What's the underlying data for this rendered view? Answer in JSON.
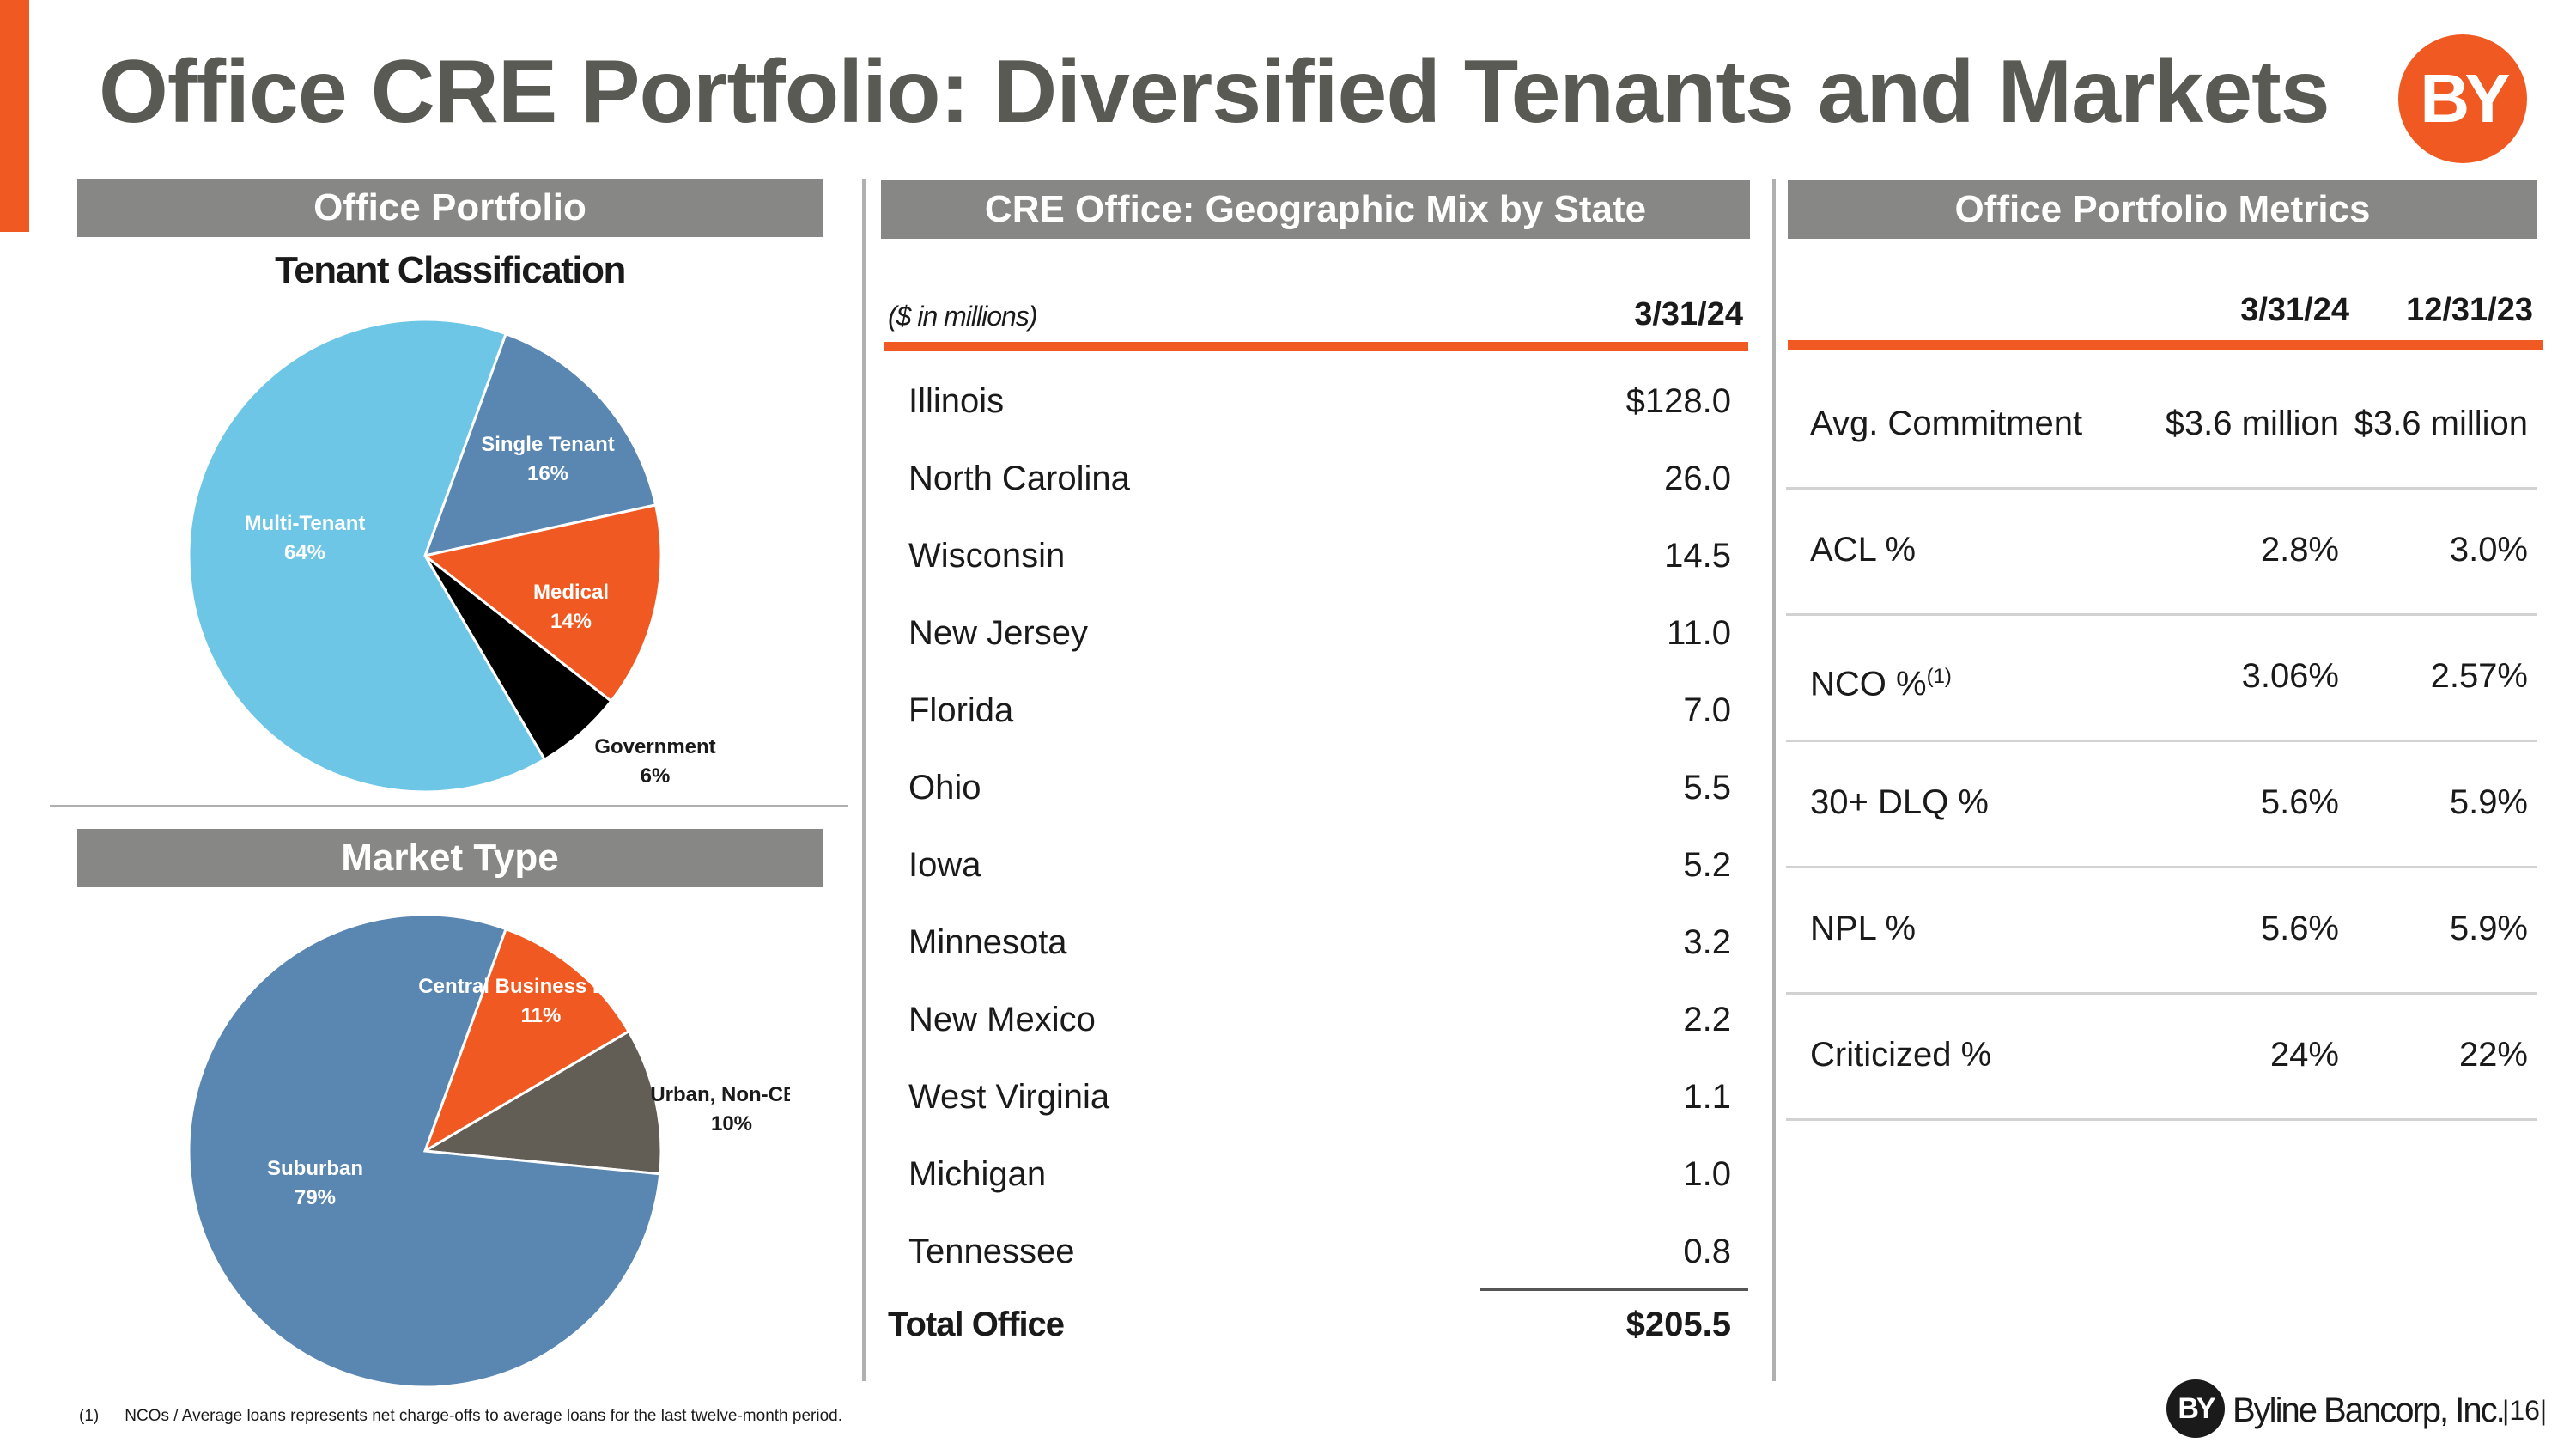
{
  "slide": {
    "title": "Office CRE Portfolio: Diversified Tenants and Markets",
    "logo_text": "BY",
    "page_number": "16",
    "footer_brand": "Byline Bancorp, Inc.",
    "footnote_marker": "(1)",
    "footnote_text": "NCOs / Average loans represents net charge-offs to average loans for the last twelve-month period."
  },
  "office_portfolio": {
    "header": "Office Portfolio",
    "subtitle": "Tenant Classification"
  },
  "market_type": {
    "header": "Market Type"
  },
  "chart_data": [
    {
      "type": "pie",
      "title": "Tenant Classification",
      "slices": [
        {
          "label": "Single Tenant",
          "value": 16,
          "pct_label": "16%",
          "color": "#5a87b2"
        },
        {
          "label": "Medical",
          "value": 14,
          "pct_label": "14%",
          "color": "#f05a22"
        },
        {
          "label": "Government",
          "value": 6,
          "pct_label": "6%",
          "color": "#000000"
        },
        {
          "label": "Multi-Tenant",
          "value": 64,
          "pct_label": "64%",
          "color": "#6ec6e6"
        }
      ]
    },
    {
      "type": "pie",
      "title": "Market Type",
      "slices": [
        {
          "label": "Central Business District",
          "value": 11,
          "pct_label": "11%",
          "color": "#f05a22"
        },
        {
          "label": "Urban, Non-CBD",
          "value": 10,
          "pct_label": "10%",
          "color": "#625e56"
        },
        {
          "label": "Suburban",
          "value": 79,
          "pct_label": "79%",
          "color": "#5a87b2"
        }
      ]
    }
  ],
  "geo": {
    "header": "CRE Office: Geographic Mix by State",
    "unit_note": "($  in millions)",
    "date": "3/31/24",
    "rows": [
      {
        "state": "Illinois",
        "value": "$128.0"
      },
      {
        "state": "North Carolina",
        "value": "26.0"
      },
      {
        "state": "Wisconsin",
        "value": "14.5"
      },
      {
        "state": "New Jersey",
        "value": "11.0"
      },
      {
        "state": "Florida",
        "value": "7.0"
      },
      {
        "state": "Ohio",
        "value": "5.5"
      },
      {
        "state": "Iowa",
        "value": "5.2"
      },
      {
        "state": "Minnesota",
        "value": "3.2"
      },
      {
        "state": "New Mexico",
        "value": "2.2"
      },
      {
        "state": "West Virginia",
        "value": "1.1"
      },
      {
        "state": "Michigan",
        "value": "1.0"
      },
      {
        "state": "Tennessee",
        "value": "0.8"
      }
    ],
    "total_label": "Total Office",
    "total_value": "$205.5"
  },
  "metrics": {
    "header": "Office Portfolio Metrics",
    "col1": "3/31/24",
    "col2": "12/31/23",
    "rows": [
      {
        "label": "Avg. Commitment",
        "sup": "",
        "v1": "$3.6 million",
        "v2": "$3.6 million"
      },
      {
        "label": "ACL %",
        "sup": "",
        "v1": "2.8%",
        "v2": "3.0%"
      },
      {
        "label": "NCO %",
        "sup": "(1)",
        "v1": "3.06%",
        "v2": "2.57%"
      },
      {
        "label": "30+ DLQ %",
        "sup": "",
        "v1": "5.6%",
        "v2": "5.9%"
      },
      {
        "label": "NPL %",
        "sup": "",
        "v1": "5.6%",
        "v2": "5.9%"
      },
      {
        "label": "Criticized %",
        "sup": "",
        "v1": "24%",
        "v2": "22%"
      }
    ]
  }
}
